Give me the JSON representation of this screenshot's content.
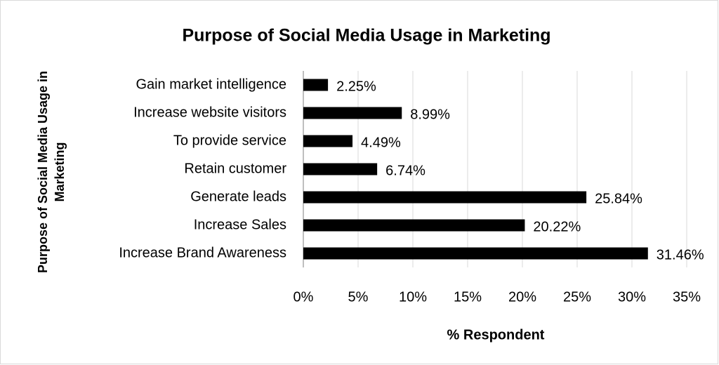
{
  "chart_data": {
    "type": "bar",
    "orientation": "horizontal",
    "title": "Purpose of Social Media Usage in Marketing",
    "x_label": "% Respondent",
    "y_label": [
      "Purpose of Social Media Usage in",
      "Marketing"
    ],
    "categories": [
      "Gain market intelligence",
      "Increase website visitors",
      "To provide service",
      "Retain customer",
      "Generate leads",
      "Increase Sales",
      "Increase Brand Awareness"
    ],
    "values": [
      2.25,
      8.99,
      4.49,
      6.74,
      25.84,
      20.22,
      31.46
    ],
    "value_labels": [
      "2.25%",
      "8.99%",
      "4.49%",
      "6.74%",
      "25.84%",
      "20.22%",
      "31.46%"
    ],
    "color": "#000000",
    "xlim": [
      0,
      35
    ],
    "xticks": [
      {
        "value": 0,
        "label": "0%"
      },
      {
        "value": 5,
        "label": "5%"
      },
      {
        "value": 10,
        "label": "10%"
      },
      {
        "value": 15,
        "label": "15%"
      },
      {
        "value": 20,
        "label": "20%"
      },
      {
        "value": 25,
        "label": "25%"
      },
      {
        "value": 30,
        "label": "30%"
      },
      {
        "value": 35,
        "label": "35%"
      }
    ],
    "grid": true
  }
}
